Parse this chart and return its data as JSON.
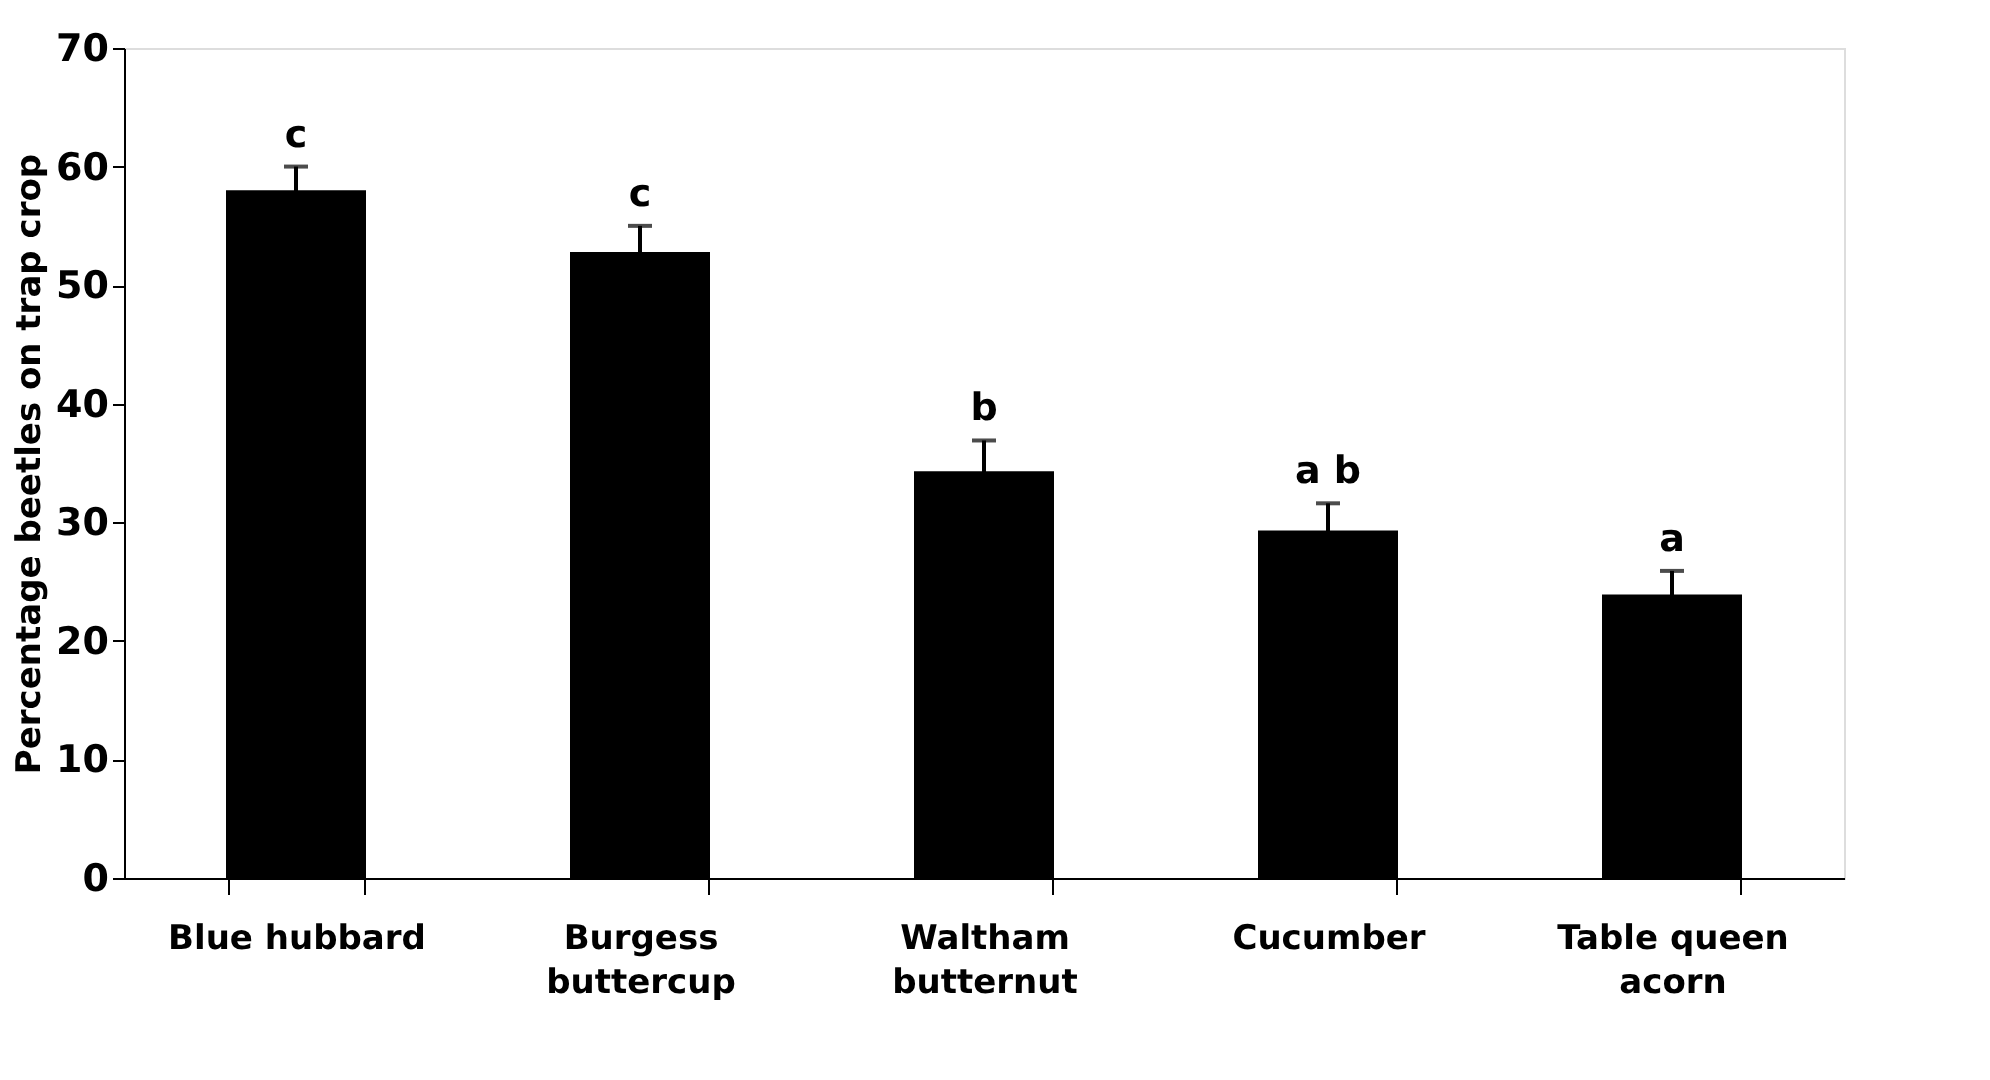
{
  "chart_data": {
    "type": "bar",
    "ylabel": "Percentage  beetles on trap crop",
    "categories": [
      "Blue hubbard",
      "Burgess buttercup",
      "Waltham butternut",
      "Cucumber",
      "Table queen acorn"
    ],
    "values": [
      58.0,
      52.8,
      34.3,
      29.3,
      23.9
    ],
    "errors": [
      2.0,
      2.2,
      2.6,
      2.3,
      2.0
    ],
    "color": "#000000",
    "ylim": [
      0,
      70
    ],
    "yticks": [
      0,
      10,
      20,
      30,
      40,
      50,
      60,
      70
    ],
    "grid": false,
    "legend": false,
    "annotations": [
      {
        "text": "c",
        "x": "Blue hubbard",
        "y": 60.0
      },
      {
        "text": "c",
        "x": "Burgess buttercup",
        "y": 55.0
      },
      {
        "text": "b",
        "x": "Waltham butternut",
        "y": 36.9
      },
      {
        "text": "a b",
        "x": "Cucumber",
        "y": 31.6
      },
      {
        "text": "a",
        "x": "Table queen acorn",
        "y": 25.9
      }
    ]
  }
}
